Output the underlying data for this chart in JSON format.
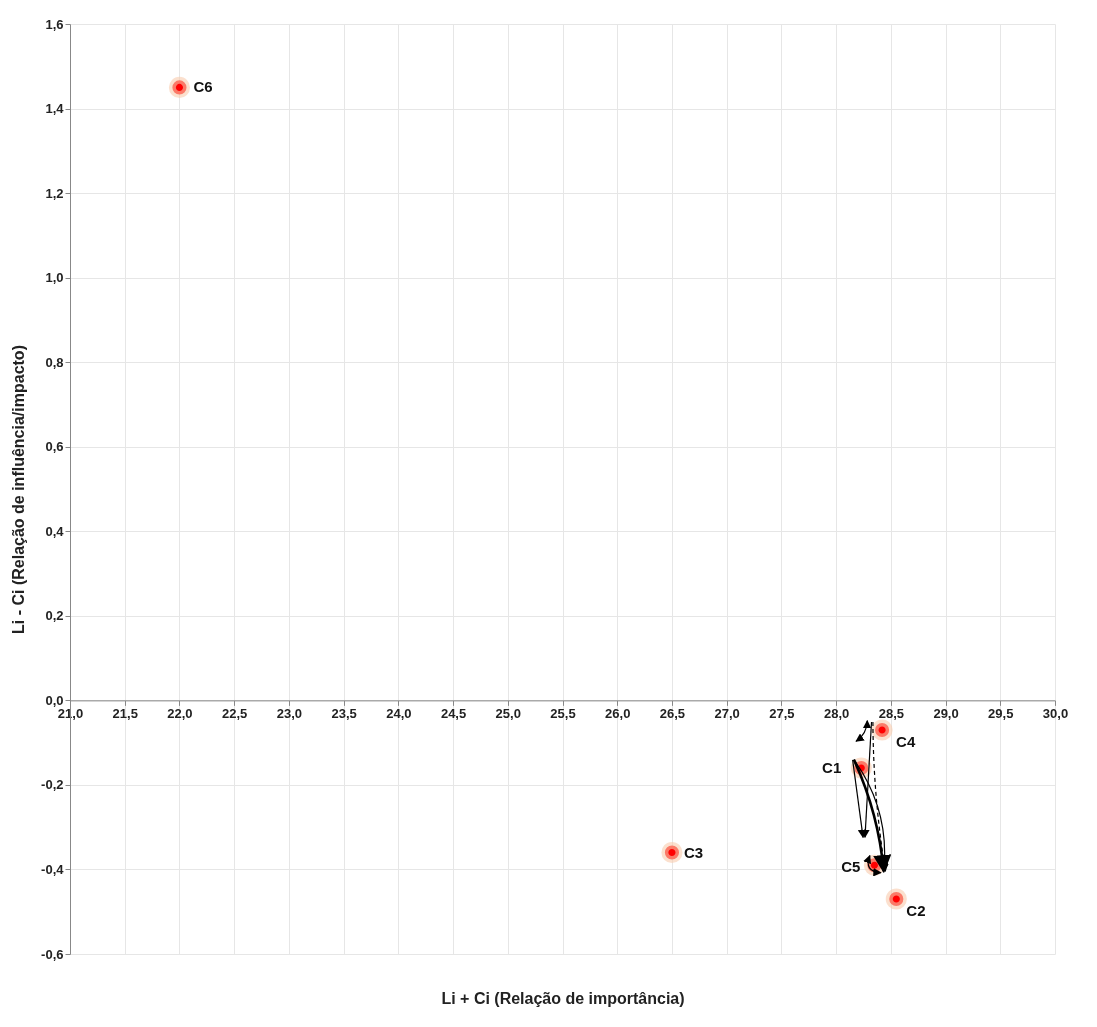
{
  "chart_data": {
    "type": "scatter",
    "xlabel": "Li + Ci (Relação de importância)",
    "ylabel": "Li - Ci (Relação de influência/impacto)",
    "x": [
      28.23,
      28.55,
      26.5,
      28.42,
      28.35,
      22.0
    ],
    "series": [
      {
        "color": "#ff0000",
        "values": [
          -0.16,
          -0.47,
          -0.36,
          -0.07,
          -0.39,
          1.45
        ]
      }
    ],
    "annotations": [
      {
        "text": "C1",
        "x": 28.23,
        "y": -0.16
      },
      {
        "text": "C2",
        "x": 28.55,
        "y": -0.47
      },
      {
        "text": "C3",
        "x": 26.5,
        "y": -0.36
      },
      {
        "text": "C4",
        "x": 28.42,
        "y": -0.07
      },
      {
        "text": "C5",
        "x": 28.35,
        "y": -0.39
      },
      {
        "text": "C6",
        "x": 22.0,
        "y": 1.45
      }
    ],
    "xlim": [
      21,
      30
    ],
    "ylim": [
      -0.6,
      1.6
    ],
    "xticks": [
      {
        "value": 21,
        "label": "21,0"
      },
      {
        "value": 21.5,
        "label": "21,5"
      },
      {
        "value": 22,
        "label": "22,0"
      },
      {
        "value": 22.5,
        "label": "22,5"
      },
      {
        "value": 23,
        "label": "23,0"
      },
      {
        "value": 23.5,
        "label": "23,5"
      },
      {
        "value": 24,
        "label": "24,0"
      },
      {
        "value": 24.5,
        "label": "24,5"
      },
      {
        "value": 25,
        "label": "25,0"
      },
      {
        "value": 25.5,
        "label": "25,5"
      },
      {
        "value": 26,
        "label": "26,0"
      },
      {
        "value": 26.5,
        "label": "26,5"
      },
      {
        "value": 27,
        "label": "27,0"
      },
      {
        "value": 27.5,
        "label": "27,5"
      },
      {
        "value": 28,
        "label": "28,0"
      },
      {
        "value": 28.5,
        "label": "28,5"
      },
      {
        "value": 29,
        "label": "29,0"
      },
      {
        "value": 29.5,
        "label": "29,5"
      },
      {
        "value": 30,
        "label": "30,0"
      }
    ],
    "yticks": [
      {
        "value": -0.6,
        "label": "-0,6"
      },
      {
        "value": -0.4,
        "label": "-0,4"
      },
      {
        "value": -0.2,
        "label": "-0,2"
      },
      {
        "value": 0,
        "label": "0,0"
      },
      {
        "value": 0.2,
        "label": "0,2"
      },
      {
        "value": 0.4,
        "label": "0,4"
      },
      {
        "value": 0.6,
        "label": "0,6"
      },
      {
        "value": 0.8,
        "label": "0,8"
      },
      {
        "value": 1.0,
        "label": "1,0"
      },
      {
        "value": 1.2,
        "label": "1,2"
      },
      {
        "value": 1.4,
        "label": "1,4"
      },
      {
        "value": 1.6,
        "label": "1,6"
      }
    ],
    "grid": true,
    "marker": "circle"
  }
}
